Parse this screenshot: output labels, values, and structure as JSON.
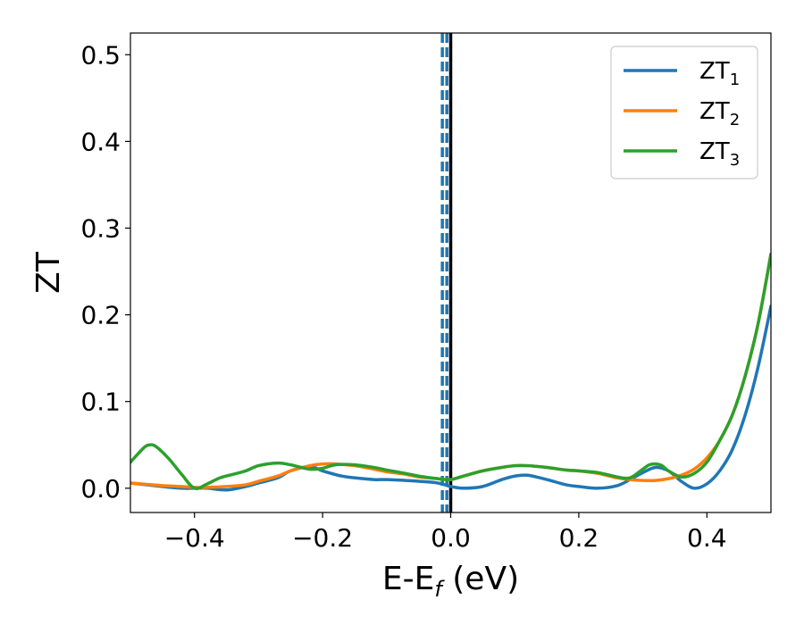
{
  "chart_data": {
    "type": "line",
    "xlabel": {
      "main": "E-E",
      "sub": "f",
      "suffix": " (eV)"
    },
    "ylabel": "ZT",
    "xlim": [
      -0.5,
      0.5
    ],
    "ylim": [
      -0.028,
      0.525
    ],
    "xticks": [
      -0.4,
      -0.2,
      0.0,
      0.2,
      0.4
    ],
    "xtick_labels": [
      "−0.4",
      "−0.2",
      "0.0",
      "0.2",
      "0.4"
    ],
    "yticks": [
      0.0,
      0.1,
      0.2,
      0.3,
      0.4,
      0.5
    ],
    "ytick_labels": [
      "0.0",
      "0.1",
      "0.2",
      "0.3",
      "0.4",
      "0.5"
    ],
    "grid": false,
    "legend_position": "top-right",
    "vertical_lines": [
      {
        "x": -0.013,
        "style": "dashed",
        "color": "#1f77b4"
      },
      {
        "x": -0.006,
        "style": "dashed",
        "color": "#1f77b4"
      },
      {
        "x": 0.0,
        "style": "solid",
        "color": "#000000"
      }
    ],
    "series": [
      {
        "name": "ZT",
        "sub": "1",
        "color": "#1f77b4",
        "x": [
          -0.5,
          -0.45,
          -0.42,
          -0.4,
          -0.38,
          -0.35,
          -0.32,
          -0.3,
          -0.27,
          -0.25,
          -0.22,
          -0.2,
          -0.17,
          -0.15,
          -0.12,
          -0.1,
          -0.07,
          -0.05,
          -0.02,
          0.0,
          0.02,
          0.05,
          0.08,
          0.1,
          0.12,
          0.15,
          0.18,
          0.2,
          0.23,
          0.26,
          0.28,
          0.3,
          0.32,
          0.34,
          0.36,
          0.38,
          0.4,
          0.42,
          0.44,
          0.46,
          0.48,
          0.5
        ],
        "y": [
          0.006,
          0.002,
          0.0,
          0.0,
          0.0,
          -0.002,
          0.002,
          0.006,
          0.012,
          0.02,
          0.025,
          0.02,
          0.014,
          0.012,
          0.01,
          0.01,
          0.009,
          0.008,
          0.006,
          0.002,
          0.0,
          0.002,
          0.01,
          0.014,
          0.015,
          0.01,
          0.004,
          0.002,
          0.0,
          0.003,
          0.01,
          0.018,
          0.024,
          0.02,
          0.008,
          0.0,
          0.005,
          0.02,
          0.045,
          0.085,
          0.14,
          0.21
        ]
      },
      {
        "name": "ZT",
        "sub": "2",
        "color": "#ff7f0e",
        "x": [
          -0.5,
          -0.45,
          -0.42,
          -0.4,
          -0.38,
          -0.35,
          -0.32,
          -0.3,
          -0.27,
          -0.25,
          -0.22,
          -0.2,
          -0.18,
          -0.15,
          -0.12,
          -0.1,
          -0.07,
          -0.05,
          -0.02,
          0.0,
          0.02,
          0.05,
          0.08,
          0.1,
          0.12,
          0.15,
          0.18,
          0.2,
          0.23,
          0.26,
          0.28,
          0.3,
          0.32,
          0.34,
          0.36,
          0.38,
          0.4,
          0.42,
          0.44,
          0.46,
          0.48,
          0.5
        ],
        "y": [
          0.006,
          0.003,
          0.002,
          0.001,
          0.001,
          0.002,
          0.004,
          0.008,
          0.014,
          0.02,
          0.026,
          0.028,
          0.028,
          0.026,
          0.022,
          0.019,
          0.016,
          0.013,
          0.011,
          0.01,
          0.014,
          0.02,
          0.024,
          0.026,
          0.026,
          0.024,
          0.021,
          0.02,
          0.017,
          0.012,
          0.01,
          0.009,
          0.009,
          0.011,
          0.015,
          0.022,
          0.035,
          0.055,
          0.085,
          0.13,
          0.19,
          0.27
        ]
      },
      {
        "name": "ZT",
        "sub": "3",
        "color": "#2ca02c",
        "x": [
          -0.5,
          -0.48,
          -0.47,
          -0.46,
          -0.44,
          -0.42,
          -0.4,
          -0.38,
          -0.36,
          -0.34,
          -0.32,
          -0.3,
          -0.27,
          -0.25,
          -0.22,
          -0.2,
          -0.18,
          -0.15,
          -0.12,
          -0.1,
          -0.07,
          -0.05,
          -0.02,
          0.0,
          0.02,
          0.05,
          0.08,
          0.1,
          0.12,
          0.15,
          0.18,
          0.2,
          0.23,
          0.26,
          0.28,
          0.3,
          0.31,
          0.32,
          0.33,
          0.34,
          0.36,
          0.38,
          0.4,
          0.42,
          0.44,
          0.46,
          0.48,
          0.5
        ],
        "y": [
          0.03,
          0.046,
          0.05,
          0.048,
          0.034,
          0.016,
          0.0,
          0.005,
          0.012,
          0.016,
          0.02,
          0.026,
          0.029,
          0.027,
          0.022,
          0.023,
          0.027,
          0.027,
          0.024,
          0.021,
          0.017,
          0.014,
          0.011,
          0.01,
          0.014,
          0.02,
          0.024,
          0.026,
          0.026,
          0.024,
          0.021,
          0.02,
          0.018,
          0.013,
          0.012,
          0.022,
          0.027,
          0.028,
          0.026,
          0.02,
          0.013,
          0.017,
          0.03,
          0.055,
          0.085,
          0.13,
          0.19,
          0.27
        ]
      }
    ]
  }
}
